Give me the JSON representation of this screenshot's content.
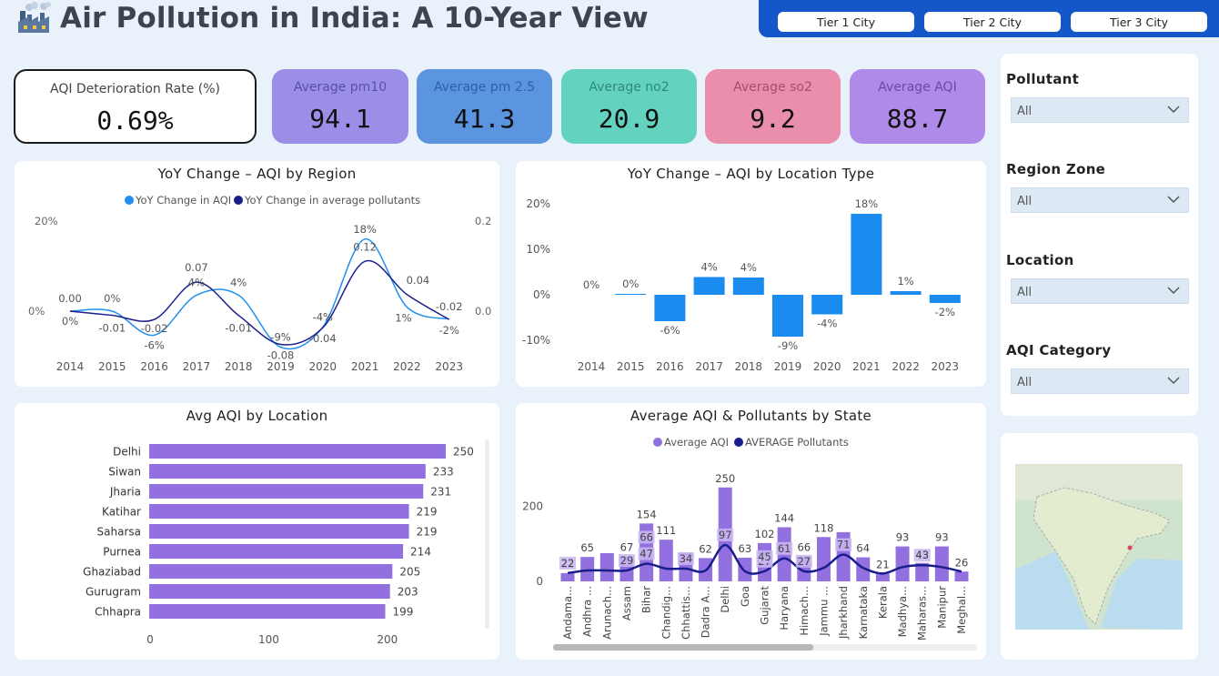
{
  "header": {
    "title": "Air Pollution in India: A 10-Year View",
    "tiers": [
      "Tier 1 City",
      "Tier 2 City",
      "Tier 3 City"
    ]
  },
  "kpis": [
    {
      "label": "AQI Deterioration Rate (%)",
      "value": "0.69%",
      "bg": "#ffffff",
      "label_color": "#444444"
    },
    {
      "label": "Average pm10",
      "value": "94.1",
      "bg": "#9b8ee6",
      "label_color": "#5a4fa8"
    },
    {
      "label": "Average pm 2.5",
      "value": "41.3",
      "bg": "#5b95e0",
      "label_color": "#2f5fa8"
    },
    {
      "label": "Average no2",
      "value": "20.9",
      "bg": "#63d3bf",
      "label_color": "#2e8a7b"
    },
    {
      "label": "Average so2",
      "value": "9.2",
      "bg": "#e98fac",
      "label_color": "#a84d6b"
    },
    {
      "label": "Average AQI",
      "value": "88.7",
      "bg": "#b08ae8",
      "label_color": "#6b48a8"
    }
  ],
  "filters": [
    {
      "label": "Pollutant",
      "value": "All"
    },
    {
      "label": "Region Zone",
      "value": "All"
    },
    {
      "label": "Location",
      "value": "All"
    },
    {
      "label": "AQI Category",
      "value": "All"
    }
  ],
  "colors": {
    "light_blue": "#1e90f0",
    "navy": "#1a1e8c",
    "bar_blue": "#1a8cf0",
    "purple": "#9370e0",
    "purple_light": "#c9b7f1"
  },
  "chart_data": [
    {
      "type": "line",
      "title": "YoY Change – AQI by Region",
      "categories": [
        "2014",
        "2015",
        "2016",
        "2017",
        "2018",
        "2019",
        "2020",
        "2021",
        "2022",
        "2023"
      ],
      "series": [
        {
          "name": "YoY Change in AQI",
          "values": [
            0,
            0,
            -6,
            4,
            4,
            -9,
            -4,
            18,
            1,
            -2
          ],
          "labels": [
            "0%",
            "0%",
            "-6%",
            "4%",
            "4%",
            "-9%",
            "-4%",
            "18%",
            "1%",
            "-2%"
          ]
        },
        {
          "name": "YoY Change in average pollutants",
          "values": [
            0.0,
            -0.01,
            -0.02,
            0.07,
            -0.01,
            -0.08,
            -0.04,
            0.12,
            0.04,
            -0.02
          ],
          "labels": [
            "0.00",
            "-0.01",
            "-0.02",
            "0.07",
            "-0.01",
            "-0.08",
            "-0.04",
            "0.12",
            "0.04",
            "-0.02"
          ]
        }
      ],
      "left_ticks": [
        "20%",
        "0%"
      ],
      "right_ticks": [
        "0.2",
        "0.0"
      ],
      "ylim_left": [
        -10,
        20
      ],
      "ylim_right": [
        -0.1,
        0.2
      ]
    },
    {
      "type": "bar",
      "title": "YoY Change – AQI by Location Type",
      "categories": [
        "2014",
        "2015",
        "2016",
        "2017",
        "2018",
        "2019",
        "2020",
        "2021",
        "2022",
        "2023"
      ],
      "values": [
        0,
        0.2,
        -5.8,
        3.9,
        3.8,
        -9.2,
        -4.3,
        17.8,
        0.8,
        -1.8
      ],
      "labels": [
        "0%",
        "0%",
        "-6%",
        "4%",
        "4%",
        "-9%",
        "-4%",
        "18%",
        "1%",
        "-2%"
      ],
      "ticks": [
        "20%",
        "10%",
        "0%",
        "-10%"
      ],
      "ylim": [
        -10,
        20
      ]
    },
    {
      "type": "bar",
      "orientation": "horizontal",
      "title": "Avg AQI by Location",
      "categories": [
        "Delhi",
        "Siwan",
        "Jharia",
        "Katihar",
        "Saharsa",
        "Purnea",
        "Ghaziabad",
        "Gurugram",
        "Chhapra"
      ],
      "values": [
        250,
        233,
        231,
        219,
        219,
        214,
        205,
        203,
        199
      ],
      "ticks": [
        "0",
        "100",
        "200"
      ],
      "xlim": [
        0,
        250
      ]
    },
    {
      "type": "bar",
      "title": "Average AQI & Pollutants by State",
      "legend": [
        "Average AQI",
        "AVERAGE Pollutants"
      ],
      "categories": [
        "Andama...",
        "Andhra ...",
        "Arunach...",
        "Assam",
        "Bihar",
        "Chandig...",
        "Chhattis...",
        "Dadra A...",
        "Delhi",
        "Goa",
        "Gujarat",
        "Haryana",
        "Himach...",
        "Jammu ...",
        "Jharkhand",
        "Karnataka",
        "Kerala",
        "Madhya...",
        "Maharas...",
        "Manipur",
        "Meghal..."
      ],
      "series": [
        {
          "name": "Average AQI",
          "values": [
            22,
            65,
            75,
            67,
            154,
            111,
            76,
            62,
            250,
            63,
            102,
            144,
            66,
            118,
            131,
            64,
            21,
            93,
            49,
            93,
            26
          ],
          "labels": [
            "22",
            "65",
            "",
            "67",
            "154",
            "111",
            "",
            "62",
            "250",
            "63",
            "102",
            "144",
            "66",
            "118",
            "",
            "64",
            "21",
            "93",
            "49",
            "93",
            "26"
          ]
        },
        {
          "name": "AVERAGE Pollutants",
          "values": [
            22,
            29,
            29,
            29,
            47,
            34,
            34,
            29,
            97,
            27,
            27,
            61,
            27,
            36,
            71,
            36,
            21,
            38,
            43,
            38,
            26
          ],
          "labels": [
            "22",
            "",
            "",
            "29",
            "47",
            "",
            "34",
            "",
            "97",
            "",
            "27",
            "61",
            "27",
            "",
            "71",
            "",
            "",
            "",
            "43",
            "",
            ""
          ]
        }
      ],
      "extra_labels": [
        {
          "index": 4,
          "text": "66"
        },
        {
          "index": 10,
          "text": "45"
        }
      ],
      "ticks": [
        "200",
        "0"
      ],
      "ylim": [
        0,
        260
      ]
    }
  ]
}
